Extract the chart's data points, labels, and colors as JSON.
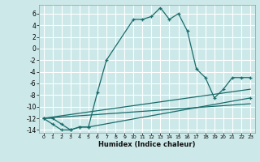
{
  "xlabel": "Humidex (Indice chaleur)",
  "bg_color": "#cce8e8",
  "grid_color": "#ffffff",
  "line_color": "#1a6b6b",
  "xlim": [
    -0.5,
    23.5
  ],
  "ylim": [
    -14.5,
    7.5
  ],
  "yticks": [
    -14,
    -12,
    -10,
    -8,
    -6,
    -4,
    -2,
    0,
    2,
    4,
    6
  ],
  "xticks": [
    0,
    1,
    2,
    3,
    4,
    5,
    6,
    7,
    8,
    9,
    10,
    11,
    12,
    13,
    14,
    15,
    16,
    17,
    18,
    19,
    20,
    21,
    22,
    23
  ],
  "line1_x": [
    0,
    1,
    2,
    3,
    4,
    5,
    6,
    7,
    10,
    11,
    12,
    13,
    14,
    15,
    16,
    17,
    18,
    19,
    20,
    21,
    22,
    23
  ],
  "line1_y": [
    -12,
    -12,
    -13,
    -14,
    -13.5,
    -13.5,
    -7.5,
    -2,
    5,
    5,
    5.5,
    7,
    5,
    6,
    3,
    -3.5,
    -5,
    -8.5,
    -7,
    -5,
    -5,
    -5
  ],
  "line2_x": [
    0,
    1,
    2,
    3,
    4,
    5,
    23
  ],
  "line2_y": [
    -12,
    -13,
    -14,
    -14,
    -13.5,
    -13.5,
    -8.5
  ],
  "line3_x": [
    0,
    23
  ],
  "line3_y": [
    -12,
    -7.0
  ],
  "line4_x": [
    0,
    23
  ],
  "line4_y": [
    -12,
    -9.5
  ]
}
